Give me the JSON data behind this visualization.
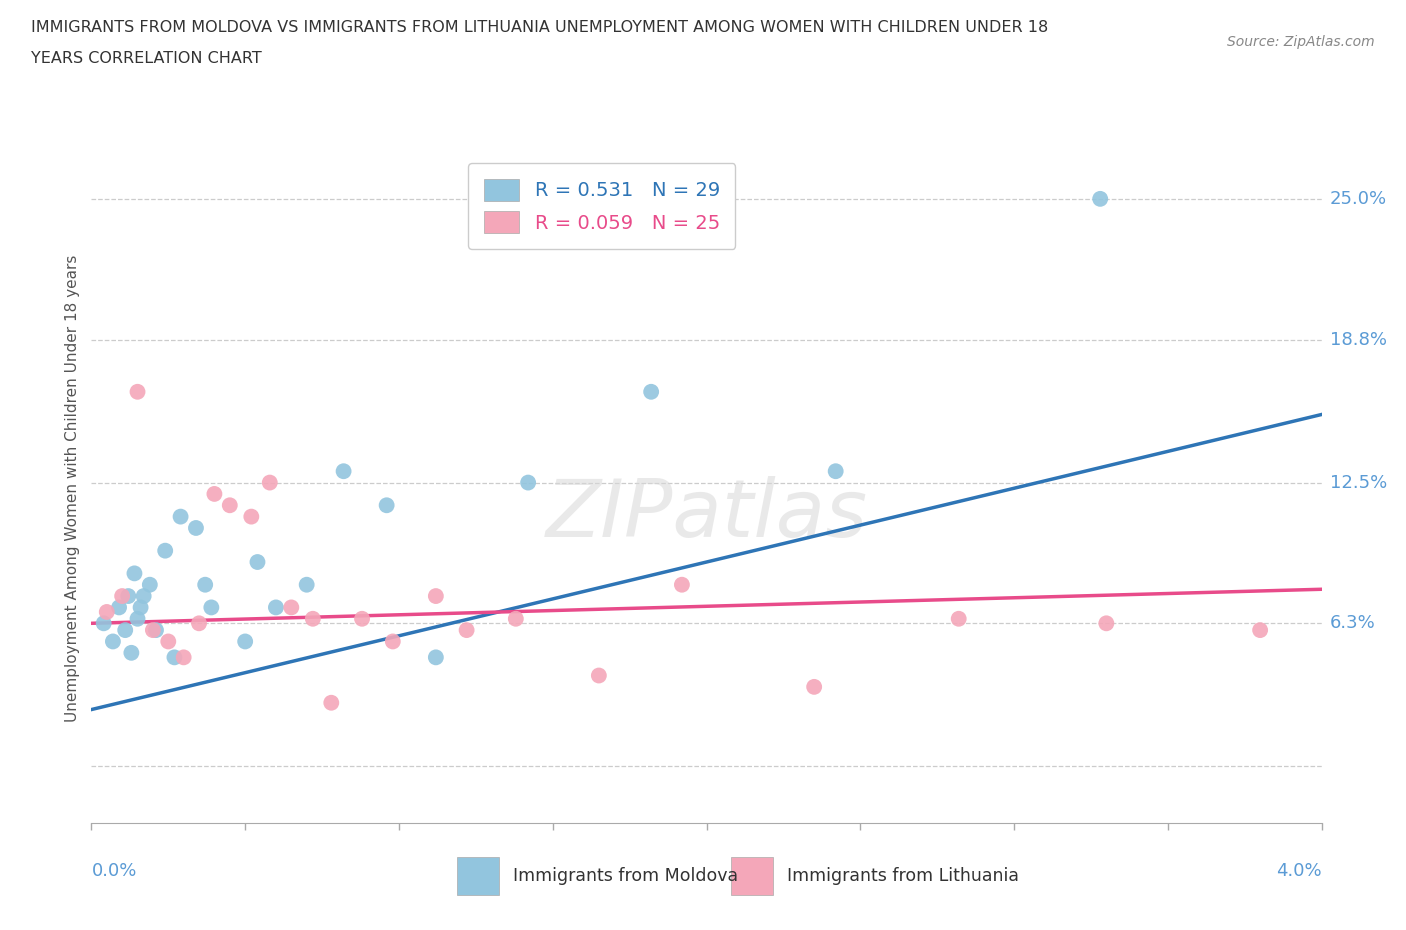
{
  "title_line1": "IMMIGRANTS FROM MOLDOVA VS IMMIGRANTS FROM LITHUANIA UNEMPLOYMENT AMONG WOMEN WITH CHILDREN UNDER 18",
  "title_line2": "YEARS CORRELATION CHART",
  "source": "Source: ZipAtlas.com",
  "xlim": [
    0.0,
    4.0
  ],
  "ylim": [
    -2.5,
    27.0
  ],
  "grid_y": [
    0.0,
    6.3,
    12.5,
    18.8,
    25.0
  ],
  "grid_y_labels": [
    "",
    "6.3%",
    "12.5%",
    "18.8%",
    "25.0%"
  ],
  "moldova_color": "#92c5de",
  "lithuania_color": "#f4a7b9",
  "trend_moldova_color": "#2e75b6",
  "trend_lithuania_color": "#e84b8a",
  "moldova_R": "0.531",
  "moldova_N": "29",
  "lithuania_R": "0.059",
  "lithuania_N": "25",
  "moldova_x": [
    0.04,
    0.07,
    0.09,
    0.11,
    0.12,
    0.13,
    0.14,
    0.15,
    0.16,
    0.17,
    0.19,
    0.21,
    0.24,
    0.27,
    0.29,
    0.34,
    0.37,
    0.39,
    0.5,
    0.54,
    0.6,
    0.7,
    0.82,
    0.96,
    1.12,
    1.42,
    1.82,
    2.42,
    3.28
  ],
  "moldova_y": [
    6.3,
    5.5,
    7.0,
    6.0,
    7.5,
    5.0,
    8.5,
    6.5,
    7.0,
    7.5,
    8.0,
    6.0,
    9.5,
    4.8,
    11.0,
    10.5,
    8.0,
    7.0,
    5.5,
    9.0,
    7.0,
    8.0,
    13.0,
    11.5,
    4.8,
    12.5,
    16.5,
    13.0,
    25.0
  ],
  "lithuania_x": [
    0.05,
    0.1,
    0.15,
    0.2,
    0.25,
    0.3,
    0.35,
    0.4,
    0.45,
    0.52,
    0.58,
    0.65,
    0.72,
    0.78,
    0.88,
    0.98,
    1.12,
    1.22,
    1.38,
    1.65,
    1.92,
    2.35,
    2.82,
    3.3,
    3.8
  ],
  "lithuania_y": [
    6.8,
    7.5,
    16.5,
    6.0,
    5.5,
    4.8,
    6.3,
    12.0,
    11.5,
    11.0,
    12.5,
    7.0,
    6.5,
    2.8,
    6.5,
    5.5,
    7.5,
    6.0,
    6.5,
    4.0,
    8.0,
    3.5,
    6.5,
    6.3,
    6.0
  ],
  "moldova_trend_x": [
    0.0,
    4.0
  ],
  "moldova_trend_y": [
    2.5,
    15.5
  ],
  "lithuania_trend_x": [
    0.0,
    4.0
  ],
  "lithuania_trend_y": [
    6.3,
    7.8
  ],
  "watermark": "ZIPatlas",
  "ylabel_text": "Unemployment Among Women with Children Under 18 years"
}
